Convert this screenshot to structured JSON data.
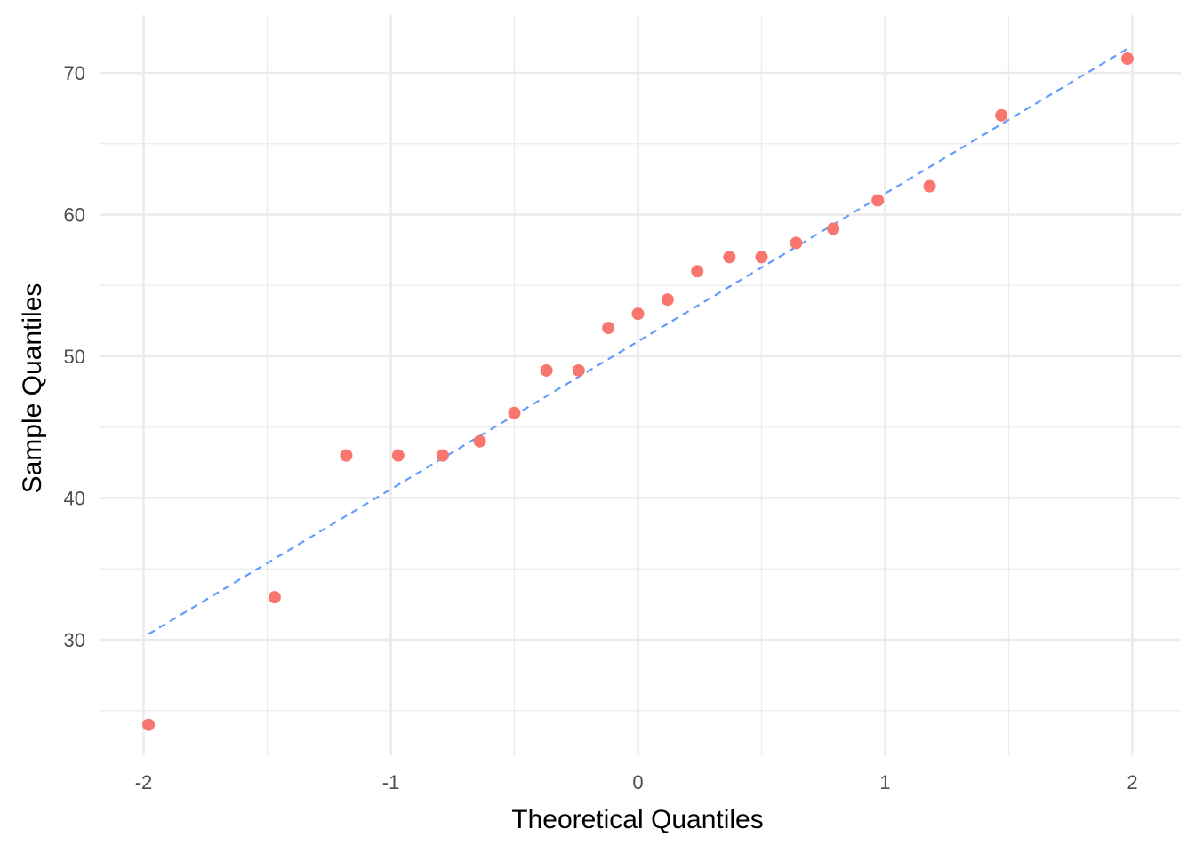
{
  "chart_data": {
    "type": "scatter",
    "title": "",
    "xlabel": "Theoretical Quantiles",
    "ylabel": "Sample Quantiles",
    "xlim": [
      -2.1,
      2.1
    ],
    "ylim": [
      22,
      73.5
    ],
    "x_ticks": [
      -2,
      -1,
      0,
      1,
      2
    ],
    "x_minor_ticks": [
      -1.5,
      -0.5,
      0.5,
      1.5
    ],
    "y_ticks": [
      30,
      40,
      50,
      60,
      70
    ],
    "y_minor_ticks": [
      25,
      35,
      45,
      55,
      65
    ],
    "grid": true,
    "legend": "none",
    "point_color": "#F8766D",
    "line_color": "#619CFF",
    "points": [
      {
        "x": -1.98,
        "y": 24
      },
      {
        "x": -1.47,
        "y": 33
      },
      {
        "x": -1.18,
        "y": 43
      },
      {
        "x": -0.97,
        "y": 43
      },
      {
        "x": -0.79,
        "y": 43
      },
      {
        "x": -0.64,
        "y": 44
      },
      {
        "x": -0.5,
        "y": 46
      },
      {
        "x": -0.37,
        "y": 49
      },
      {
        "x": -0.24,
        "y": 49
      },
      {
        "x": -0.12,
        "y": 52
      },
      {
        "x": 0.0,
        "y": 53
      },
      {
        "x": 0.12,
        "y": 54
      },
      {
        "x": 0.24,
        "y": 56
      },
      {
        "x": 0.37,
        "y": 57
      },
      {
        "x": 0.5,
        "y": 57
      },
      {
        "x": 0.64,
        "y": 58
      },
      {
        "x": 0.79,
        "y": 59
      },
      {
        "x": 0.97,
        "y": 61
      },
      {
        "x": 1.18,
        "y": 62
      },
      {
        "x": 1.47,
        "y": 67
      },
      {
        "x": 1.98,
        "y": 71
      }
    ],
    "reference_line": {
      "x1": -1.98,
      "y1": 30.4,
      "x2": 1.98,
      "y2": 71.7,
      "style": "dashed"
    }
  }
}
